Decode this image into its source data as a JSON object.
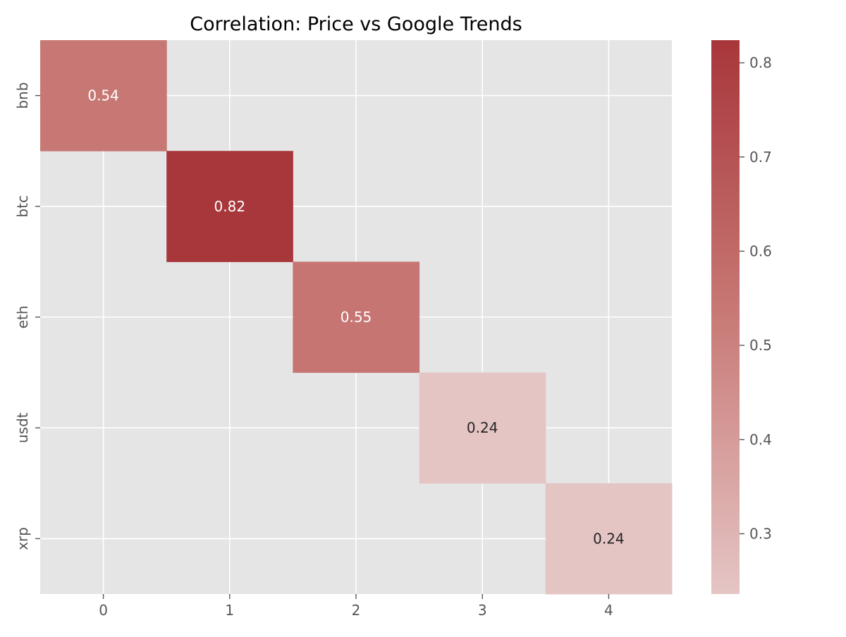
{
  "chart_data": {
    "type": "heatmap",
    "title": "Correlation: Price vs Google Trends",
    "xlabel": "",
    "ylabel": "",
    "x_categories": [
      "0",
      "1",
      "2",
      "3",
      "4"
    ],
    "y_categories": [
      "bnb",
      "btc",
      "eth",
      "usdt",
      "xrp"
    ],
    "cells": [
      {
        "row": 0,
        "col": 0,
        "value": 0.54,
        "label": "0.54"
      },
      {
        "row": 1,
        "col": 1,
        "value": 0.82,
        "label": "0.82"
      },
      {
        "row": 2,
        "col": 2,
        "value": 0.55,
        "label": "0.55"
      },
      {
        "row": 3,
        "col": 3,
        "value": 0.24,
        "label": "0.24"
      },
      {
        "row": 4,
        "col": 4,
        "value": 0.24,
        "label": "0.24"
      }
    ],
    "missing_cell_color": "#e5e5e5",
    "grid": true,
    "grid_color": "#ffffff",
    "colorbar": {
      "range": [
        0.236,
        0.824
      ],
      "ticks": [
        0.3,
        0.4,
        0.5,
        0.6,
        0.7,
        0.8
      ],
      "tick_labels": [
        "0.3",
        "0.4",
        "0.5",
        "0.6",
        "0.7",
        "0.8"
      ],
      "colors": {
        "low": "#e5c5c5",
        "mid": "#c87a76",
        "high": "#a8363b"
      },
      "placement": "right"
    },
    "annotation_colors": {
      "light_cells": "#262626",
      "dark_cells": "#ffffff"
    }
  }
}
